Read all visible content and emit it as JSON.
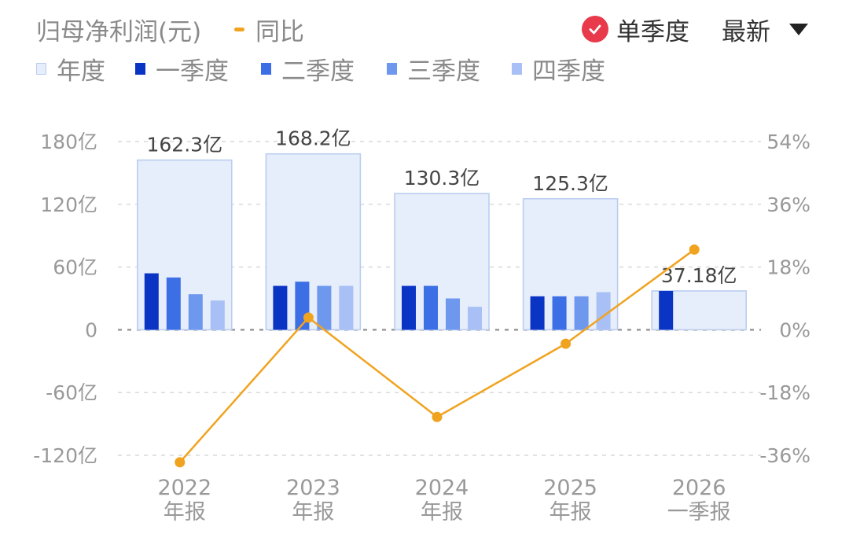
{
  "header": {
    "title": "归母净利润(元)",
    "yoy_label": "同比",
    "mode_label": "单季度",
    "period_label": "最新"
  },
  "legend": {
    "items": [
      {
        "label": "年度",
        "color": "#e6edfb"
      },
      {
        "label": "一季度",
        "color": "#0a34c4"
      },
      {
        "label": "二季度",
        "color": "#3c6ee6"
      },
      {
        "label": "三季度",
        "color": "#6e97ee"
      },
      {
        "label": "四季度",
        "color": "#a8c0f5"
      }
    ]
  },
  "colors": {
    "annual_fill": "#e6edfb",
    "annual_border": "#b9cbef",
    "yoy_line": "#f0a31f",
    "grid": "#d9d9d9",
    "zero_line": "#9a9a9a",
    "check_badge": "#e83a4a"
  },
  "chart_data": {
    "type": "bar",
    "categories": [
      [
        "2022",
        "年报"
      ],
      [
        "2023",
        "年报"
      ],
      [
        "2024",
        "年报"
      ],
      [
        "2025",
        "年报"
      ],
      [
        "2026",
        "一季报"
      ]
    ],
    "annual": [
      162.3,
      168.2,
      130.3,
      125.3,
      37.18
    ],
    "annual_labels": [
      "162.3亿",
      "168.2亿",
      "130.3亿",
      "125.3亿",
      "37.18亿"
    ],
    "series": [
      {
        "name": "一季度",
        "values": [
          54,
          42,
          42,
          32,
          37.18
        ]
      },
      {
        "name": "二季度",
        "values": [
          50,
          46,
          42,
          32,
          null
        ]
      },
      {
        "name": "三季度",
        "values": [
          34,
          42,
          30,
          32,
          null
        ]
      },
      {
        "name": "四季度",
        "values": [
          28,
          42,
          22,
          36,
          null
        ]
      }
    ],
    "yoy": [
      -38,
      3.5,
      -25,
      -4,
      23
    ],
    "y_left": {
      "ticks": [
        180,
        120,
        60,
        0,
        -60,
        -120
      ],
      "tick_labels": [
        "180亿",
        "120亿",
        "60亿",
        "0",
        "-60亿",
        "-120亿"
      ],
      "range": [
        -120,
        180
      ]
    },
    "y_right": {
      "ticks": [
        54,
        36,
        18,
        0,
        -18,
        -36
      ],
      "tick_labels": [
        "54%",
        "36%",
        "18%",
        "0%",
        "-18%",
        "-36%"
      ],
      "range": [
        -36,
        54
      ]
    },
    "grid": true
  }
}
